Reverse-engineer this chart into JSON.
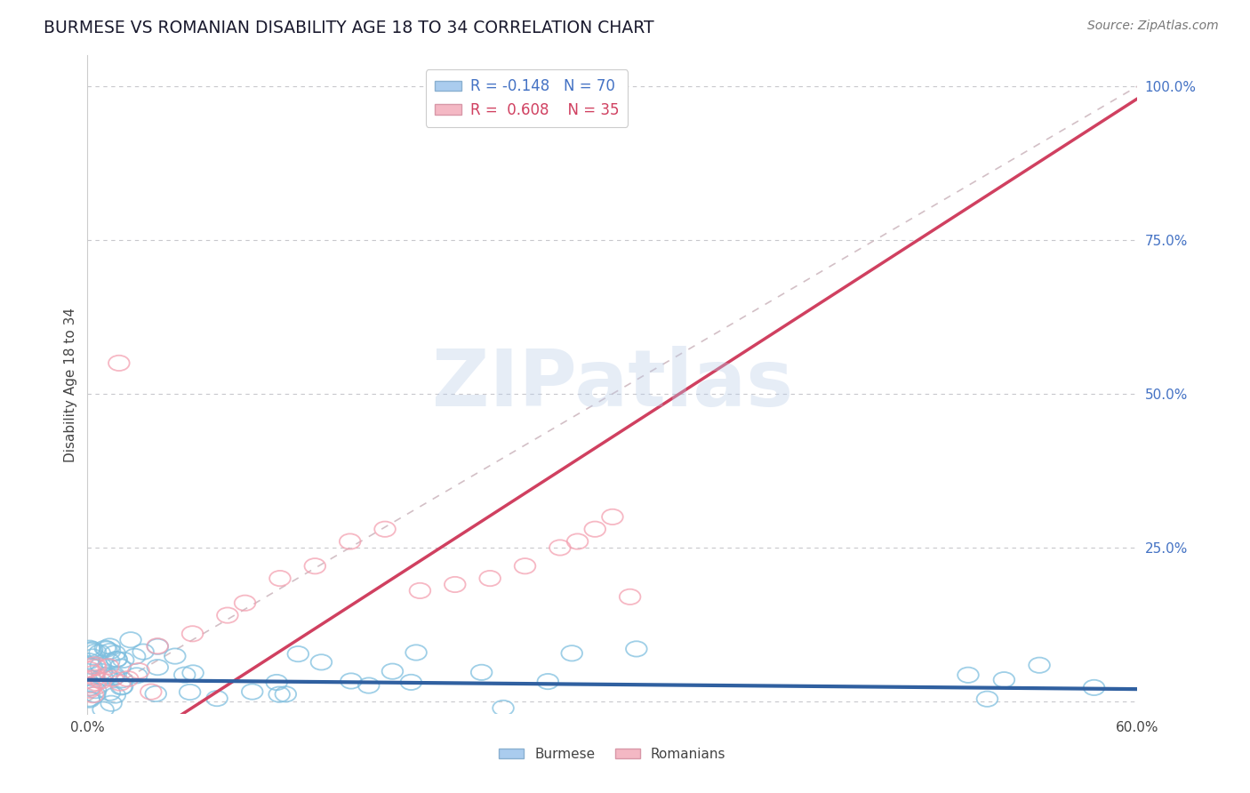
{
  "title": "BURMESE VS ROMANIAN DISABILITY AGE 18 TO 34 CORRELATION CHART",
  "source_text": "Source: ZipAtlas.com",
  "ylabel": "Disability Age 18 to 34",
  "xlim": [
    0.0,
    0.6
  ],
  "ylim": [
    -0.02,
    1.05
  ],
  "burmese_color": "#7fbfdf",
  "romanian_color": "#f4a0b0",
  "burmese_line_color": "#3060a0",
  "romanian_line_color": "#d04060",
  "diagonal_color": "#c8b0b8",
  "grid_color": "#c8c8cc",
  "R_burmese": -0.148,
  "N_burmese": 70,
  "R_romanian": 0.608,
  "N_romanian": 35,
  "watermark": "ZIPatlas",
  "burmese_seed": 12345,
  "romanian_seed": 67890
}
